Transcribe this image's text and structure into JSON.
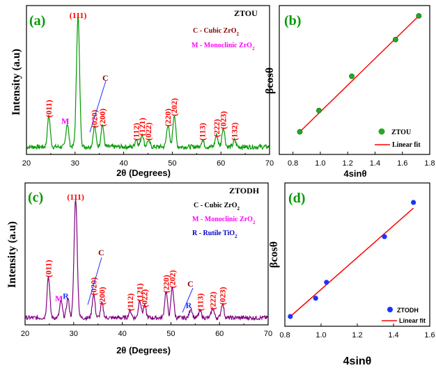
{
  "chart_data": [
    {
      "panel": "(a)",
      "type": "line",
      "sample": "ZTOU",
      "xlabel": "2θ (Degrees)",
      "ylabel": "Intensity (a.u)",
      "xlim": [
        20,
        70
      ],
      "x_ticks": [
        "20",
        "30",
        "40",
        "50",
        "60",
        "70"
      ],
      "color": "#009900",
      "legend": [
        "C - Cubic ZrO2",
        "M - Monoclinic ZrO2"
      ],
      "legend_colors": [
        "#8b0000",
        "#ff00ff"
      ],
      "peaks": [
        {
          "x": 24.6,
          "y": 0.24,
          "label": "(011)"
        },
        {
          "x": 28.4,
          "y": 0.18,
          "label": "M"
        },
        {
          "x": 30.6,
          "y": 1.0,
          "label": "(111)"
        },
        {
          "x": 34.0,
          "y": 0.16,
          "label": "(020)"
        },
        {
          "x": 35.6,
          "y": 0.17,
          "label": "(200)"
        },
        {
          "x": 42.6,
          "y": 0.06,
          "label": "(112)"
        },
        {
          "x": 43.8,
          "y": 0.1,
          "label": "(121)"
        },
        {
          "x": 45.1,
          "y": 0.05,
          "label": "(022)"
        },
        {
          "x": 49.1,
          "y": 0.17,
          "label": "(220)"
        },
        {
          "x": 50.4,
          "y": 0.25,
          "label": "(202)"
        },
        {
          "x": 56.2,
          "y": 0.05,
          "label": "(113)"
        },
        {
          "x": 59.1,
          "y": 0.09,
          "label": "(222)"
        },
        {
          "x": 60.5,
          "y": 0.15,
          "label": "(023)"
        },
        {
          "x": 62.8,
          "y": 0.05,
          "label": "(132)"
        }
      ],
      "annotation": "C"
    },
    {
      "panel": "(b)",
      "type": "scatter",
      "sample": "ZTOU",
      "xlabel": "4sinθ",
      "ylabel": "βcosθ",
      "xlim": [
        0.7,
        1.8
      ],
      "x_ticks": [
        "0.8",
        "1.0",
        "1.2",
        "1.4",
        "1.6",
        "1.8"
      ],
      "color": "#22aa22",
      "points": [
        {
          "x": 0.85,
          "y": 0.05
        },
        {
          "x": 0.99,
          "y": 0.23
        },
        {
          "x": 1.23,
          "y": 0.52
        },
        {
          "x": 1.55,
          "y": 0.83
        },
        {
          "x": 1.72,
          "y": 1.03
        }
      ],
      "fit": [
        [
          0.85,
          0.05
        ],
        [
          1.72,
          1.03
        ]
      ],
      "legend": [
        "ZTOU",
        "Linear fit"
      ]
    },
    {
      "panel": "(c)",
      "type": "line",
      "sample": "ZTODH",
      "xlabel": "2θ (Degrees)",
      "ylabel": "Intensity (a.u)",
      "xlim": [
        20,
        70
      ],
      "x_ticks": [
        "20",
        "30",
        "40",
        "50",
        "60",
        "70"
      ],
      "color": "#800080",
      "legend": [
        "C - Cubic ZrO2",
        "M - Monoclinic ZrO2",
        "R - Rutile TiO2"
      ],
      "legend_colors": [
        "#000000",
        "#ff00ff",
        "#0000cc"
      ],
      "peaks": [
        {
          "x": 24.8,
          "y": 0.35,
          "label": "(011)"
        },
        {
          "x": 27.4,
          "y": 0.14,
          "label": "M"
        },
        {
          "x": 28.8,
          "y": 0.16,
          "label": "R"
        },
        {
          "x": 30.4,
          "y": 1.0,
          "label": "(111)"
        },
        {
          "x": 34.1,
          "y": 0.2,
          "label": "(020)"
        },
        {
          "x": 35.8,
          "y": 0.12,
          "label": "(200)"
        },
        {
          "x": 41.6,
          "y": 0.06,
          "label": "(112)"
        },
        {
          "x": 43.6,
          "y": 0.15,
          "label": "(121)"
        },
        {
          "x": 44.6,
          "y": 0.1,
          "label": "(022)"
        },
        {
          "x": 49.0,
          "y": 0.22,
          "label": "(220)"
        },
        {
          "x": 50.3,
          "y": 0.26,
          "label": "(202)"
        },
        {
          "x": 54.1,
          "y": 0.08,
          "label": "R"
        },
        {
          "x": 56.0,
          "y": 0.06,
          "label": "(113)"
        },
        {
          "x": 58.6,
          "y": 0.08,
          "label": "(222)"
        },
        {
          "x": 60.6,
          "y": 0.12,
          "label": "(023)"
        }
      ],
      "annotations": [
        "C",
        "C"
      ]
    },
    {
      "panel": "(d)",
      "type": "scatter",
      "sample": "ZTODH",
      "xlabel": "4sinθ",
      "ylabel": "βcosθ",
      "xlim": [
        0.8,
        1.6
      ],
      "x_ticks": [
        "0.8",
        "1.0",
        "1.2",
        "1.4",
        "1.6"
      ],
      "color": "#1a33ff",
      "points": [
        {
          "x": 0.83,
          "y": 0.0
        },
        {
          "x": 0.97,
          "y": 0.16
        },
        {
          "x": 1.03,
          "y": 0.3
        },
        {
          "x": 1.35,
          "y": 0.7
        },
        {
          "x": 1.51,
          "y": 1.0
        }
      ],
      "fit": [
        [
          0.83,
          0.0
        ],
        [
          1.51,
          0.95
        ]
      ],
      "legend": [
        "ZTODH",
        "Linear fit"
      ]
    }
  ]
}
